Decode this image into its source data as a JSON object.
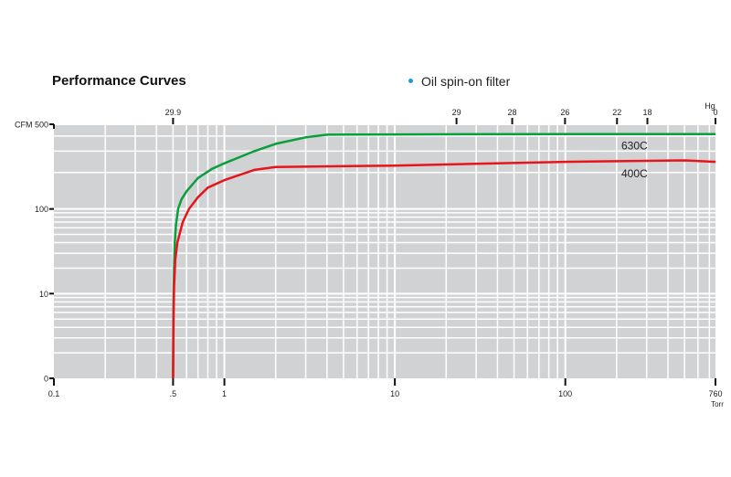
{
  "chart_data": {
    "type": "line",
    "title": "Performance Curves",
    "legend": {
      "label": "Oil spin-on filter",
      "color": "#1e9ad6",
      "placement": "top-center"
    },
    "xscale": "log",
    "xlim": [
      0.1,
      760
    ],
    "xlabel": "Torr",
    "x_ticks": [
      {
        "v": 0.1,
        "label": "0.1"
      },
      {
        "v": 0.5,
        "label": ".5"
      },
      {
        "v": 1,
        "label": "1"
      },
      {
        "v": 10,
        "label": "10"
      },
      {
        "v": 100,
        "label": "100"
      },
      {
        "v": 760,
        "label": "760"
      }
    ],
    "top_axis_label": "Hg",
    "top_ticks": [
      {
        "v": 0.5,
        "label": "29.9"
      },
      {
        "v": 23,
        "label": "29"
      },
      {
        "v": 48.8,
        "label": "28"
      },
      {
        "v": 99.6,
        "label": "26"
      },
      {
        "v": 201,
        "label": "22"
      },
      {
        "v": 303,
        "label": "18"
      },
      {
        "v": 760,
        "label": "0"
      }
    ],
    "ylabel": "CFM",
    "y_ticks": [
      {
        "v": 0,
        "label": "0"
      },
      {
        "v": 10,
        "label": "10"
      },
      {
        "v": 100,
        "label": "100"
      },
      {
        "v": 500,
        "label": "CFM 500"
      }
    ],
    "grid": true,
    "series": [
      {
        "name": "630C",
        "color": "#0a9e3c",
        "x": [
          0.5,
          0.503,
          0.507,
          0.512,
          0.52,
          0.535,
          0.56,
          0.6,
          0.7,
          0.85,
          1,
          1.5,
          2,
          3,
          4,
          10,
          100,
          760
        ],
        "y": [
          0,
          8,
          20,
          40,
          65,
          100,
          120,
          140,
          180,
          215,
          238,
          300,
          345,
          390,
          410,
          412,
          415,
          415
        ]
      },
      {
        "name": "400C",
        "color": "#e8141b",
        "x": [
          0.5,
          0.503,
          0.507,
          0.515,
          0.53,
          0.57,
          0.62,
          0.7,
          0.8,
          1,
          1.5,
          2,
          10,
          100,
          500,
          760
        ],
        "y": [
          0,
          5,
          12,
          25,
          40,
          70,
          100,
          125,
          150,
          173,
          210,
          222,
          228,
          245,
          252,
          245
        ]
      }
    ]
  }
}
